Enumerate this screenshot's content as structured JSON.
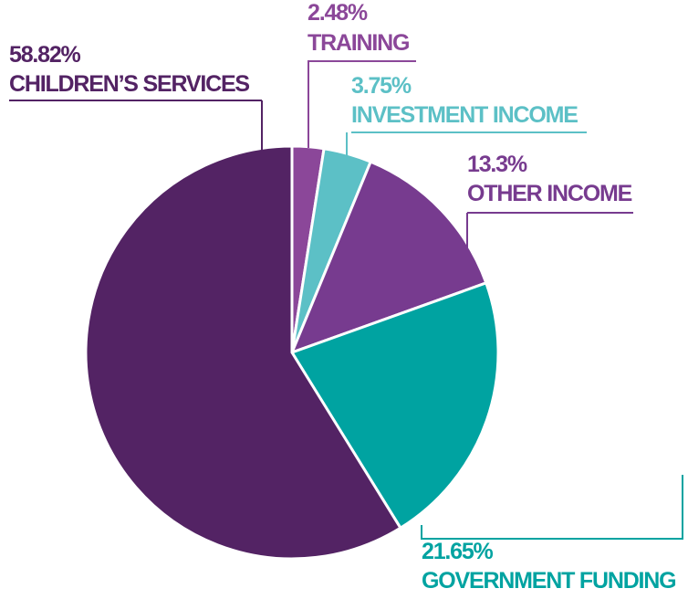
{
  "chart_data": {
    "type": "pie",
    "categories": [
      "TRAINING",
      "INVESTMENT INCOME",
      "OTHER INCOME",
      "GOVERNMENT FUNDING",
      "CHILDREN’S SERVICES"
    ],
    "values": [
      2.48,
      3.75,
      13.3,
      21.65,
      58.82
    ],
    "value_labels": [
      "2.48%",
      "3.75%",
      "13.3%",
      "21.65%",
      "58.82%"
    ],
    "colors": [
      "#8b4799",
      "#5cc0c6",
      "#773b8f",
      "#00a3a1",
      "#532364"
    ]
  }
}
